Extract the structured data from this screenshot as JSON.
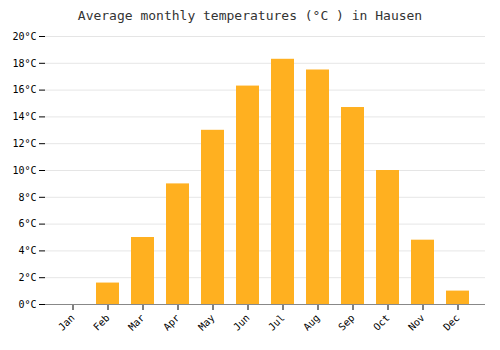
{
  "chart_data": {
    "type": "bar",
    "title": "Average monthly temperatures (°C ) in Hausen",
    "categories": [
      "Jan",
      "Feb",
      "Mar",
      "Apr",
      "May",
      "Jun",
      "Jul",
      "Aug",
      "Sep",
      "Oct",
      "Nov",
      "Dec"
    ],
    "values": [
      0,
      1.6,
      5.0,
      9.0,
      13.0,
      16.3,
      18.3,
      17.5,
      14.7,
      10.0,
      4.8,
      1.0
    ],
    "color": "#FFB020",
    "ylim": [
      0,
      20
    ],
    "yticks": [
      {
        "value": 0,
        "label": "0°C"
      },
      {
        "value": 2,
        "label": "2°C"
      },
      {
        "value": 4,
        "label": "4°C"
      },
      {
        "value": 6,
        "label": "6°C"
      },
      {
        "value": 8,
        "label": "8°C"
      },
      {
        "value": 10,
        "label": "10°C"
      },
      {
        "value": 12,
        "label": "12°C"
      },
      {
        "value": 14,
        "label": "14°C"
      },
      {
        "value": 16,
        "label": "16°C"
      },
      {
        "value": 18,
        "label": "18°C"
      },
      {
        "value": 20,
        "label": "20°C"
      }
    ],
    "grid": true
  }
}
